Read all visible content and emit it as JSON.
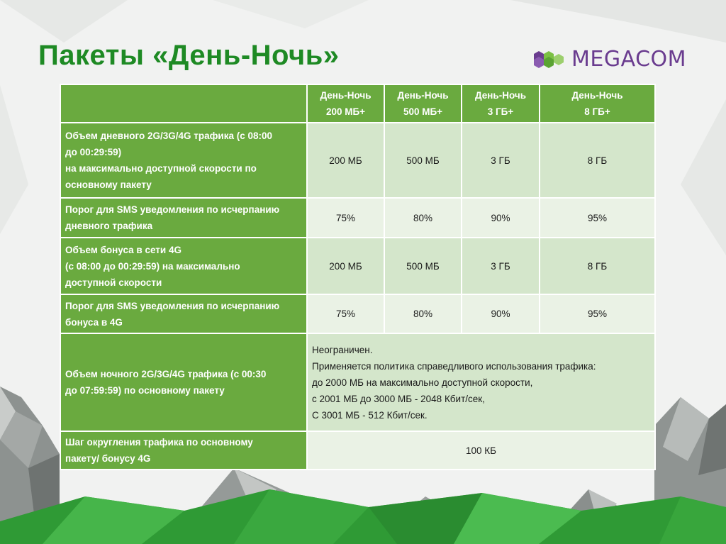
{
  "title": "Пакеты «День-Ночь»",
  "logo": {
    "text": "MEGACOM",
    "icon": "hexagon-logo-icon",
    "color": "#6a3c8f"
  },
  "colors": {
    "title": "#1e8a24",
    "header": "#6aaa3f",
    "row_dark": "#d4e6cb",
    "row_light": "#eaf2e5"
  },
  "table": {
    "headers": [
      {
        "line1": "День-Ночь",
        "line2": "200 МБ+"
      },
      {
        "line1": "День-Ночь",
        "line2": "500 МБ+"
      },
      {
        "line1": "День-Ночь",
        "line2": "3 ГБ+"
      },
      {
        "line1": "День-Ночь",
        "line2": "8 ГБ+"
      }
    ],
    "rows": [
      {
        "label": [
          "Объем дневного 2G/3G/4G трафика (с 08:00",
          "до 00:29:59)",
          "на максимально доступной скорости по",
          "основному пакету"
        ],
        "values": [
          "200 МБ",
          "500 МБ",
          "3 ГБ",
          "8 ГБ"
        ]
      },
      {
        "label": [
          "Порог для SMS уведомления по исчерпанию",
          "дневного трафика"
        ],
        "values": [
          "75%",
          "80%",
          "90%",
          "95%"
        ]
      },
      {
        "label": [
          "Объем бонуса в сети 4G",
          "(с 08:00 до 00:29:59) на максимально",
          "доступной скорости"
        ],
        "values": [
          "200 МБ",
          "500 МБ",
          "3 ГБ",
          "8 ГБ"
        ]
      },
      {
        "label": [
          "Порог для SMS уведомления по исчерпанию",
          "бонуса в 4G"
        ],
        "values": [
          "75%",
          "80%",
          "90%",
          "95%"
        ]
      }
    ],
    "night": {
      "label": [
        "Объем ночного 2G/3G/4G трафика (с 00:30",
        "до 07:59:59) по основному пакету"
      ],
      "lines": [
        "Неограничен.",
        "Применяется политика справедливого использования трафика:",
        "до 2000 МБ на максимально доступной скорости,",
        "с 2001 МБ до 3000 МБ  - 2048 Кбит/сек,",
        "С 3001 МБ - 512 Кбит/сек."
      ]
    },
    "rounding": {
      "label": [
        "Шаг округления трафика по основному",
        "пакету/ бонусу 4G"
      ],
      "value": "100 КБ"
    }
  }
}
